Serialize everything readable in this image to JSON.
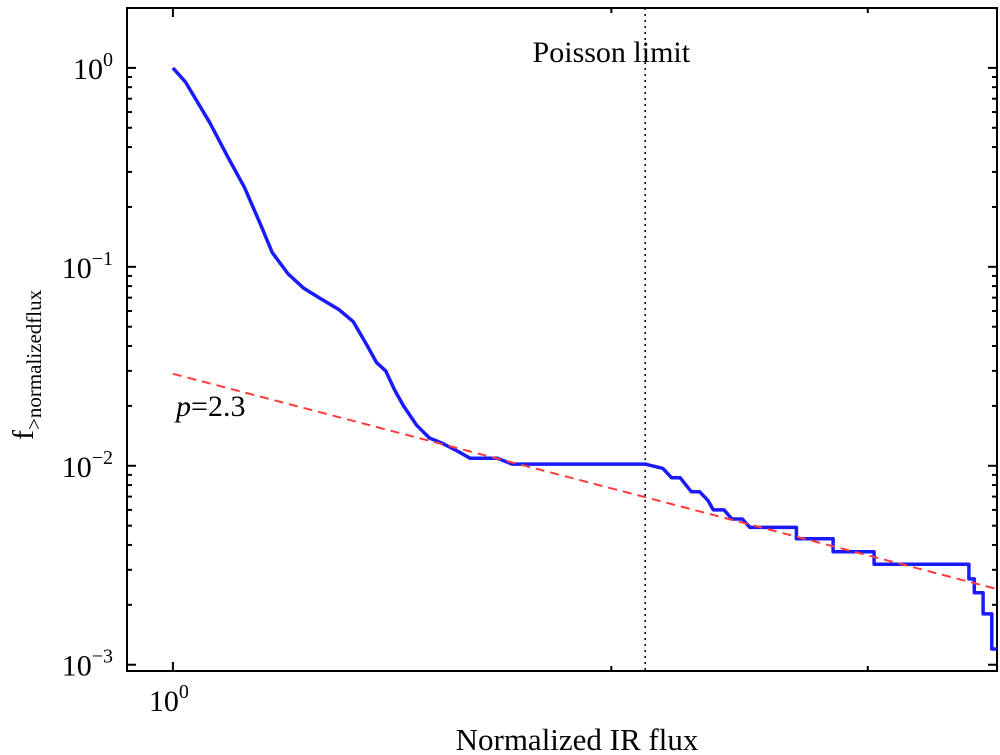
{
  "chart_data": {
    "type": "line",
    "xlabel": "Normalized IR flux",
    "ylabel": {
      "base": "f",
      "subscript": ">normalizedflux"
    },
    "x_scale": "log",
    "y_scale": "log",
    "xlim": [
      0.93,
      3.68
    ],
    "ylim": [
      0.00093,
      2.0
    ],
    "x_ticks": [
      {
        "value": 1.0,
        "base": "10",
        "exp": "0"
      }
    ],
    "y_ticks": [
      {
        "value": 1.0,
        "base": "10",
        "exp": "0"
      },
      {
        "value": 0.1,
        "base": "10",
        "exp": "−1"
      },
      {
        "value": 0.01,
        "base": "10",
        "exp": "−2"
      },
      {
        "value": 0.001,
        "base": "10",
        "exp": "−3"
      }
    ],
    "series": [
      {
        "color": "#1a1aff",
        "style": "solid",
        "x": [
          1.0,
          1.02,
          1.06,
          1.09,
          1.12,
          1.15,
          1.17,
          1.2,
          1.23,
          1.26,
          1.3,
          1.33,
          1.36,
          1.38,
          1.4,
          1.42,
          1.44,
          1.47,
          1.5,
          1.53,
          1.57,
          1.6,
          1.64,
          1.67,
          1.71,
          1.75,
          1.8,
          1.86,
          1.92,
          1.97,
          2.02,
          2.07,
          2.11,
          2.17,
          2.2,
          2.23,
          2.27,
          2.3,
          2.33,
          2.35,
          2.39,
          2.42,
          2.46,
          2.49,
          2.53,
          2.56,
          2.6,
          2.6,
          2.68,
          2.68,
          2.74,
          2.74,
          2.84,
          2.84,
          3.03,
          3.03,
          3.08,
          3.08,
          3.28,
          3.28,
          3.52,
          3.52,
          3.55,
          3.55,
          3.6,
          3.6,
          3.65,
          3.65,
          3.68
        ],
        "y": [
          1.0,
          0.85,
          0.53,
          0.36,
          0.25,
          0.16,
          0.118,
          0.092,
          0.078,
          0.07,
          0.061,
          0.053,
          0.04,
          0.033,
          0.03,
          0.024,
          0.02,
          0.016,
          0.0138,
          0.013,
          0.0118,
          0.0109,
          0.0109,
          0.0109,
          0.0102,
          0.0102,
          0.0102,
          0.0102,
          0.0102,
          0.0102,
          0.0102,
          0.0102,
          0.0102,
          0.0097,
          0.0087,
          0.0087,
          0.0074,
          0.0074,
          0.0067,
          0.006,
          0.006,
          0.0054,
          0.0054,
          0.0049,
          0.0049,
          0.0049,
          0.0049,
          0.0049,
          0.0049,
          0.0043,
          0.0043,
          0.0043,
          0.0043,
          0.0037,
          0.0037,
          0.0032,
          0.0032,
          0.0032,
          0.0032,
          0.0032,
          0.0032,
          0.0027,
          0.0027,
          0.0023,
          0.0023,
          0.0018,
          0.0018,
          0.0012,
          0.0012
        ]
      },
      {
        "color": "#ff3b3b",
        "style": "dashed",
        "x": [
          1.0,
          3.68
        ],
        "y": [
          0.029,
          0.0024
        ]
      }
    ],
    "vline": {
      "x": 2.11,
      "style": "dotted",
      "color": "#000000"
    },
    "annotations": [
      {
        "text": "Poisson limit",
        "x": 2.0,
        "y": 1.07,
        "style": "normal"
      },
      {
        "italic": "p",
        "text": "=2.3",
        "x": 1.005,
        "y": 0.0178,
        "style": "mixed"
      }
    ],
    "grid": false,
    "legend": "none"
  }
}
